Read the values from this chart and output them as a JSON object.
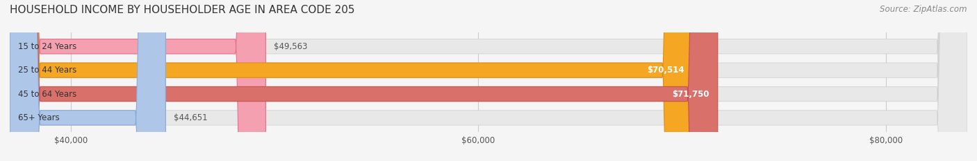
{
  "title": "HOUSEHOLD INCOME BY HOUSEHOLDER AGE IN AREA CODE 205",
  "source": "Source: ZipAtlas.com",
  "categories": [
    "15 to 24 Years",
    "25 to 44 Years",
    "45 to 64 Years",
    "65+ Years"
  ],
  "values": [
    49563,
    70514,
    71750,
    44651
  ],
  "bar_colors": [
    "#f4a0b0",
    "#f5a623",
    "#d9706a",
    "#aec6e8"
  ],
  "bar_edge_colors": [
    "#e8708a",
    "#e08c10",
    "#c45050",
    "#88a8d8"
  ],
  "label_colors": [
    "#555555",
    "#ffffff",
    "#ffffff",
    "#555555"
  ],
  "x_min": 37000,
  "x_max": 84000,
  "x_ticks": [
    40000,
    60000,
    80000
  ],
  "x_tick_labels": [
    "$40,000",
    "$60,000",
    "$80,000"
  ],
  "background_color": "#f5f5f5",
  "bar_bg_color": "#e8e8e8",
  "title_fontsize": 11,
  "source_fontsize": 8.5,
  "label_fontsize": 8.5,
  "category_fontsize": 8.5
}
